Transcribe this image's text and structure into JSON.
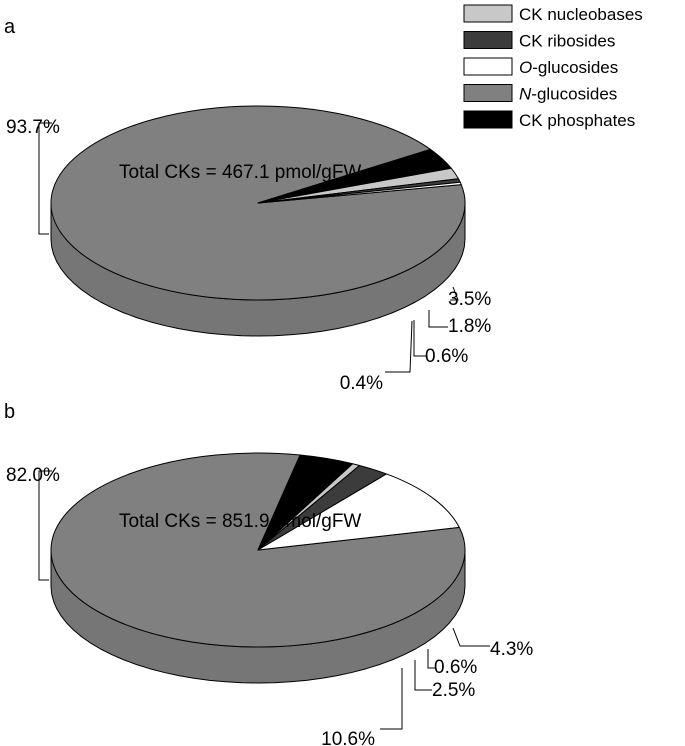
{
  "legend": {
    "items": [
      {
        "label": "CK nucleobases",
        "prefix": "",
        "italic": "",
        "rest": "CK nucleobases",
        "color": "#c8c8c8"
      },
      {
        "label": "CK ribosides",
        "prefix": "",
        "italic": "",
        "rest": "CK ribosides",
        "color": "#3c3c3c"
      },
      {
        "label": "O-glucosides",
        "prefix": "",
        "italic": "O",
        "rest": "-glucosides",
        "color": "#ffffff"
      },
      {
        "label": "N-glucosides",
        "prefix": "",
        "italic": "N",
        "rest": "-glucosides",
        "color": "#808080"
      },
      {
        "label": "CK phosphates",
        "prefix": "",
        "italic": "",
        "rest": "CK phosphates",
        "color": "#000000"
      }
    ]
  },
  "chart_data": [
    {
      "type": "pie",
      "panel": "a",
      "title": "Total CKs = 467.1 pmol/gFW",
      "slices": [
        {
          "name": "N-glucosides",
          "value": 93.7,
          "label": "93.7%",
          "color": "#808080"
        },
        {
          "name": "CK phosphates",
          "value": 3.5,
          "label": "3.5%",
          "color": "#000000"
        },
        {
          "name": "CK nucleobases",
          "value": 1.8,
          "label": "1.8%",
          "color": "#c8c8c8"
        },
        {
          "name": "CK ribosides",
          "value": 0.6,
          "label": "0.6%",
          "color": "#3c3c3c"
        },
        {
          "name": "O-glucosides",
          "value": 0.4,
          "label": "0.4%",
          "color": "#ffffff"
        }
      ]
    },
    {
      "type": "pie",
      "panel": "b",
      "title": "Total CKs = 851.9 pmol/gFW",
      "slices": [
        {
          "name": "N-glucosides",
          "value": 82.0,
          "label": "82.0%",
          "color": "#808080"
        },
        {
          "name": "CK phosphates",
          "value": 4.3,
          "label": "4.3%",
          "color": "#000000"
        },
        {
          "name": "CK nucleobases",
          "value": 0.6,
          "label": "0.6%",
          "color": "#c8c8c8"
        },
        {
          "name": "CK ribosides",
          "value": 2.5,
          "label": "2.5%",
          "color": "#3c3c3c"
        },
        {
          "name": "O-glucosides",
          "value": 10.6,
          "label": "10.6%",
          "color": "#ffffff"
        }
      ]
    }
  ]
}
